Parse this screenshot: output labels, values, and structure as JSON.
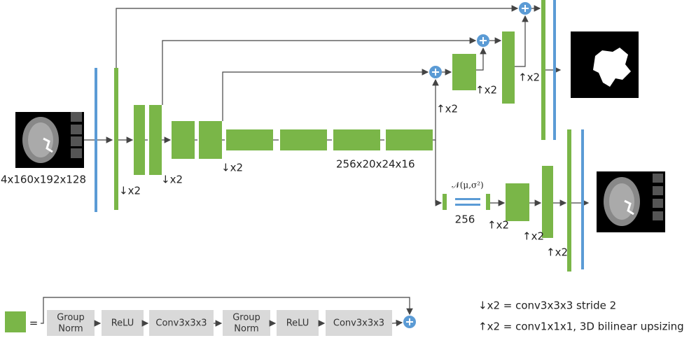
{
  "input_shape": "4x160x192x128",
  "encoder_labels": [
    "↓x2",
    "↓x2",
    "↓x2"
  ],
  "bottleneck_shape": "256x20x24x16",
  "decoder_labels": [
    "↑x2",
    "↑x2",
    "↑x2"
  ],
  "vae": {
    "distribution": "𝒩(μ,σ²)",
    "latent_size": "256",
    "labels": [
      "↑x2",
      "↑x2",
      "↑x2"
    ]
  },
  "block_legend": {
    "equals": "=",
    "steps": [
      {
        "lines": [
          "Group",
          "Norm"
        ]
      },
      {
        "lines": [
          "ReLU"
        ]
      },
      {
        "lines": [
          "Conv3x3x3"
        ]
      },
      {
        "lines": [
          "Group",
          "Norm"
        ]
      },
      {
        "lines": [
          "ReLU"
        ]
      },
      {
        "lines": [
          "Conv3x3x3"
        ]
      }
    ]
  },
  "notes": [
    "↓x2 = conv3x3x3 stride 2",
    "↑x2 = conv1x1x1, 3D bilinear upsizing"
  ]
}
